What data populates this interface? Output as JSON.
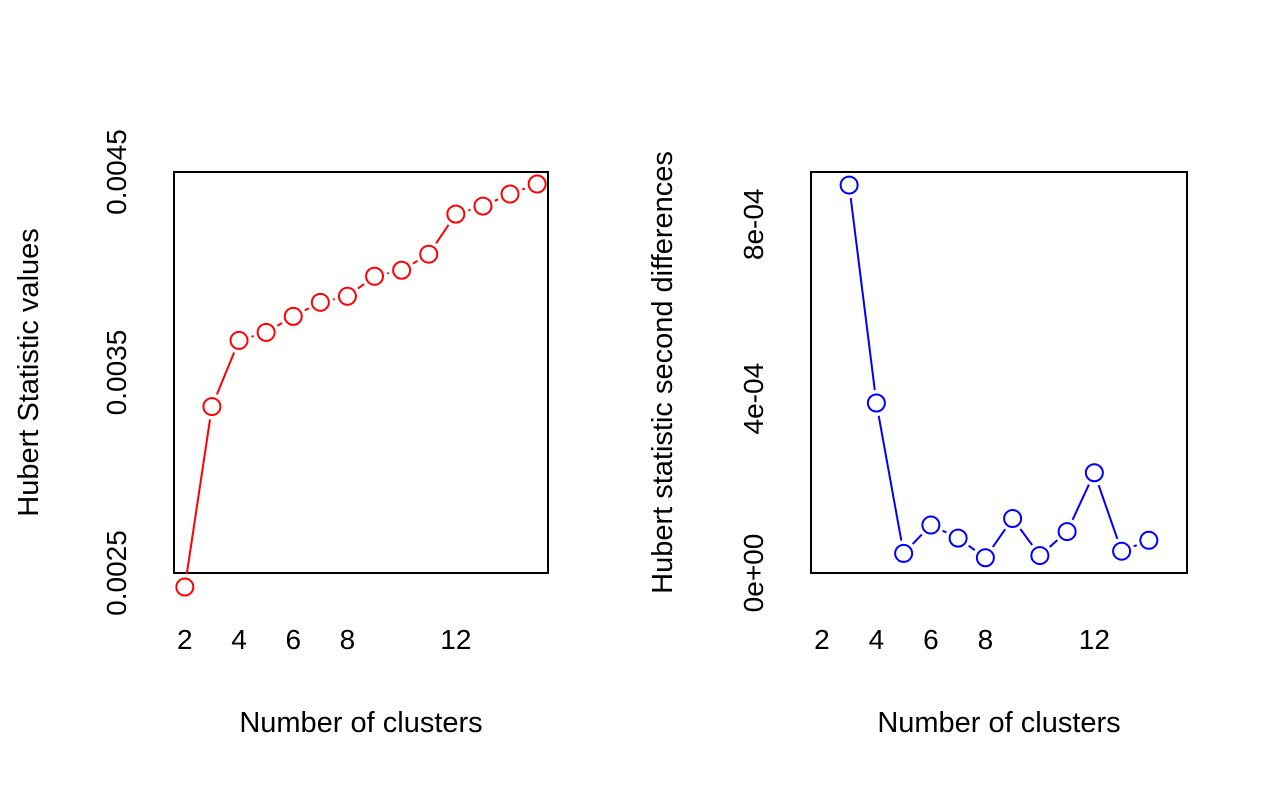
{
  "chart_data": [
    {
      "type": "line",
      "title": "",
      "xlabel": "Number of clusters",
      "ylabel": "Hubert Statistic values",
      "xlim": [
        1.6,
        15.4
      ],
      "ylim": [
        0.0025,
        0.0045
      ],
      "x_ticks": [
        2,
        4,
        6,
        8,
        12
      ],
      "x_tick_labels": [
        "2",
        "4",
        "6",
        "8",
        "12"
      ],
      "y_ticks": [
        0.0025,
        0.0035,
        0.0045
      ],
      "y_tick_labels": [
        "0.0025",
        "0.0035",
        "0.0045"
      ],
      "grid": false,
      "point_style": "open-circle",
      "color": "#ff0000",
      "series": [
        {
          "x": [
            2,
            3,
            4,
            5,
            6,
            7,
            8,
            9,
            10,
            11,
            12,
            13,
            14,
            15
          ],
          "values": [
            0.00243,
            0.00333,
            0.00366,
            0.0037,
            0.00378,
            0.00385,
            0.00388,
            0.00398,
            0.00401,
            0.00409,
            0.00429,
            0.00433,
            0.00439,
            0.00444
          ]
        }
      ]
    },
    {
      "type": "line",
      "title": "",
      "xlabel": "Number of clusters",
      "ylabel": "Hubert statistic second differences",
      "xlim": [
        1.6,
        15.4
      ],
      "ylim": [
        0,
        0.00092
      ],
      "x_ticks": [
        2,
        4,
        6,
        8,
        12
      ],
      "x_tick_labels": [
        "2",
        "4",
        "6",
        "8",
        "12"
      ],
      "y_ticks": [
        0,
        0.0004,
        0.0008
      ],
      "y_tick_labels": [
        "0e+00",
        "4e-04",
        "8e-04"
      ],
      "grid": false,
      "point_style": "open-circle",
      "color": "#0000ff",
      "series": [
        {
          "x": [
            3,
            4,
            5,
            6,
            7,
            8,
            9,
            10,
            11,
            12,
            13,
            14
          ],
          "values": [
            0.00089,
            0.00039,
            4.5e-05,
            0.00011,
            8e-05,
            3.5e-05,
            0.000125,
            4e-05,
            9.5e-05,
            0.00023,
            5e-05,
            7.5e-05
          ]
        }
      ]
    }
  ]
}
